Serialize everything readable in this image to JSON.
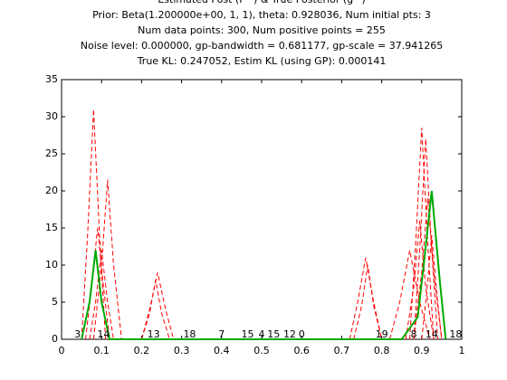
{
  "chart_data": {
    "type": "line",
    "title": [
      "Estimated Post (P^) & True Posterior (g^)",
      "Prior: Beta(1.200000e+00, 1, 1), theta: 0.928036, Num initial pts: 3",
      "Num data points: 300, Num positive points = 255",
      "Noise level: 0.000000, gp-bandwidth  = 0.681177, gp-scale = 37.941265",
      "True KL: 0.247052, Estim KL (using GP): 0.000141"
    ],
    "xlim": [
      0,
      1
    ],
    "xticks": [
      0,
      0.1,
      0.2,
      0.3,
      0.4,
      0.5,
      0.6,
      0.7,
      0.8,
      0.9,
      1
    ],
    "ylim": [
      0,
      35
    ],
    "yticks": [
      0,
      5,
      10,
      15,
      20,
      25,
      30,
      35
    ],
    "series": [
      {
        "color": "#ff0000",
        "dashed": true,
        "x": [
          0.05,
          0.065,
          0.08,
          0.095,
          0.11
        ],
        "values": [
          0,
          14,
          31,
          14,
          0
        ]
      },
      {
        "color": "#ff0000",
        "dashed": true,
        "x": [
          0.08,
          0.1,
          0.115,
          0.13,
          0.15
        ],
        "values": [
          0,
          10,
          21.5,
          10,
          0
        ]
      },
      {
        "color": "#ff0000",
        "dashed": true,
        "x": [
          0.06,
          0.075,
          0.09,
          0.105,
          0.12
        ],
        "values": [
          0,
          7,
          15,
          7,
          0
        ]
      },
      {
        "color": "#ff0000",
        "dashed": true,
        "x": [
          0.07,
          0.085,
          0.1,
          0.115,
          0.13
        ],
        "values": [
          0,
          5,
          12,
          5,
          0
        ]
      },
      {
        "color": "#ff0000",
        "dashed": true,
        "x": [
          0.2,
          0.22,
          0.24,
          0.26,
          0.28
        ],
        "values": [
          0,
          4,
          9,
          4,
          0
        ]
      },
      {
        "color": "#ff0000",
        "dashed": true,
        "x": [
          0.2,
          0.22,
          0.235,
          0.25,
          0.27
        ],
        "values": [
          0,
          3.5,
          8,
          3.5,
          0
        ]
      },
      {
        "color": "#ff0000",
        "dashed": true,
        "x": [
          0.72,
          0.74,
          0.76,
          0.78,
          0.8
        ],
        "values": [
          0,
          5,
          11,
          5,
          0
        ]
      },
      {
        "color": "#ff0000",
        "dashed": true,
        "x": [
          0.73,
          0.75,
          0.765,
          0.78,
          0.8
        ],
        "values": [
          0,
          4.5,
          10,
          4.5,
          0
        ]
      },
      {
        "color": "#ff0000",
        "dashed": true,
        "x": [
          0.87,
          0.885,
          0.9,
          0.915,
          0.93
        ],
        "values": [
          0,
          13,
          28.5,
          13,
          0
        ]
      },
      {
        "color": "#ff0000",
        "dashed": true,
        "x": [
          0.88,
          0.895,
          0.91,
          0.925,
          0.94
        ],
        "values": [
          0,
          12,
          27,
          12,
          0
        ]
      },
      {
        "color": "#ff0000",
        "dashed": true,
        "x": [
          0.88,
          0.9,
          0.915,
          0.93,
          0.95
        ],
        "values": [
          0,
          9,
          19,
          9,
          0
        ]
      },
      {
        "color": "#ff0000",
        "dashed": true,
        "x": [
          0.86,
          0.88,
          0.895,
          0.91,
          0.93
        ],
        "values": [
          0,
          7,
          16,
          7,
          0
        ]
      },
      {
        "color": "#ff0000",
        "dashed": true,
        "x": [
          0.82,
          0.845,
          0.87,
          0.895,
          0.92
        ],
        "values": [
          0,
          5,
          12,
          5,
          0
        ]
      },
      {
        "color": "#ff0000",
        "dashed": true,
        "x": [
          0.9,
          0.912,
          0.925,
          0.938,
          0.95
        ],
        "values": [
          0,
          6,
          14,
          6,
          0
        ]
      },
      {
        "color": "#00aa00",
        "dashed": false,
        "x": [
          0.05,
          0.07,
          0.085,
          0.1,
          0.12,
          0.85,
          0.89,
          0.905,
          0.925,
          0.945,
          0.96
        ],
        "values": [
          0,
          5,
          12,
          5,
          0,
          0,
          3,
          10,
          20,
          8,
          0
        ]
      }
    ],
    "annotations": [
      {
        "text": "3",
        "x": 0.04,
        "y": 0.6
      },
      {
        "text": "14",
        "x": 0.105,
        "y": 0.6
      },
      {
        "text": "13",
        "x": 0.23,
        "y": 0.6
      },
      {
        "text": "18",
        "x": 0.32,
        "y": 0.6
      },
      {
        "text": "7",
        "x": 0.4,
        "y": 0.6
      },
      {
        "text": "15",
        "x": 0.465,
        "y": 0.6
      },
      {
        "text": "4",
        "x": 0.5,
        "y": 0.6
      },
      {
        "text": "15",
        "x": 0.53,
        "y": 0.6
      },
      {
        "text": "12",
        "x": 0.57,
        "y": 0.6
      },
      {
        "text": "0",
        "x": 0.6,
        "y": 0.6
      },
      {
        "text": "19",
        "x": 0.8,
        "y": 0.6
      },
      {
        "text": "8",
        "x": 0.88,
        "y": 0.6
      },
      {
        "text": "14",
        "x": 0.925,
        "y": 0.6
      },
      {
        "text": "18",
        "x": 0.985,
        "y": 0.6
      }
    ]
  }
}
